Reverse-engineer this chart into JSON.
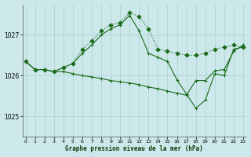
{
  "title": "Graphe pression niveau de la mer (hPa)",
  "bg_color": "#cce8ea",
  "grid_color": "#b0d4d6",
  "line_color": "#1a6b1a",
  "x_ticks": [
    0,
    1,
    2,
    3,
    4,
    5,
    6,
    7,
    8,
    9,
    10,
    11,
    12,
    13,
    14,
    15,
    16,
    17,
    18,
    19,
    20,
    21,
    22,
    23
  ],
  "y_ticks": [
    1025,
    1026,
    1027
  ],
  "ylim": [
    1024.5,
    1027.75
  ],
  "xlim": [
    -0.3,
    23.3
  ],
  "series": [
    {
      "x": [
        0,
        1,
        2,
        3,
        4,
        5,
        6,
        7,
        8,
        9,
        10,
        11,
        12,
        13,
        14,
        15,
        16,
        17,
        18,
        19,
        20,
        21,
        22,
        23
      ],
      "y": [
        1026.35,
        1026.15,
        1026.15,
        1026.1,
        1026.2,
        1026.3,
        1026.65,
        1026.85,
        1027.1,
        1027.25,
        1027.3,
        1027.55,
        1027.45,
        1027.15,
        1026.65,
        1026.6,
        1026.55,
        1026.5,
        1026.5,
        1026.55,
        1026.65,
        1026.7,
        1026.75,
        1026.7
      ],
      "linestyle": ":",
      "marker": "D",
      "markersize": 2.5
    },
    {
      "x": [
        0,
        1,
        2,
        3,
        4,
        5,
        6,
        7,
        8,
        9,
        10,
        11,
        12,
        13,
        14,
        15,
        16,
        17,
        18,
        19,
        20,
        21,
        22,
        23
      ],
      "y": [
        1026.35,
        1026.15,
        1026.15,
        1026.1,
        1026.2,
        1026.3,
        1026.55,
        1026.75,
        1027.0,
        1027.15,
        1027.25,
        1027.48,
        1027.1,
        1026.55,
        1026.45,
        1026.35,
        1025.9,
        1025.55,
        1025.2,
        1025.4,
        1026.05,
        1026.0,
        1026.65,
        1026.7
      ],
      "linestyle": "-",
      "marker": "+",
      "markersize": 3.5
    },
    {
      "x": [
        0,
        1,
        2,
        3,
        4,
        5,
        6,
        7,
        8,
        9,
        10,
        11,
        12,
        13,
        14,
        15,
        16,
        17,
        18,
        19,
        20,
        21,
        22,
        23
      ],
      "y": [
        1026.35,
        1026.15,
        1026.15,
        1026.1,
        1026.1,
        1026.05,
        1026.0,
        1025.97,
        1025.93,
        1025.88,
        1025.85,
        1025.82,
        1025.78,
        1025.72,
        1025.68,
        1025.62,
        1025.57,
        1025.52,
        1025.88,
        1025.88,
        1026.12,
        1026.15,
        1026.6,
        1026.75
      ],
      "linestyle": "-",
      "marker": "+",
      "markersize": 3.5
    }
  ]
}
